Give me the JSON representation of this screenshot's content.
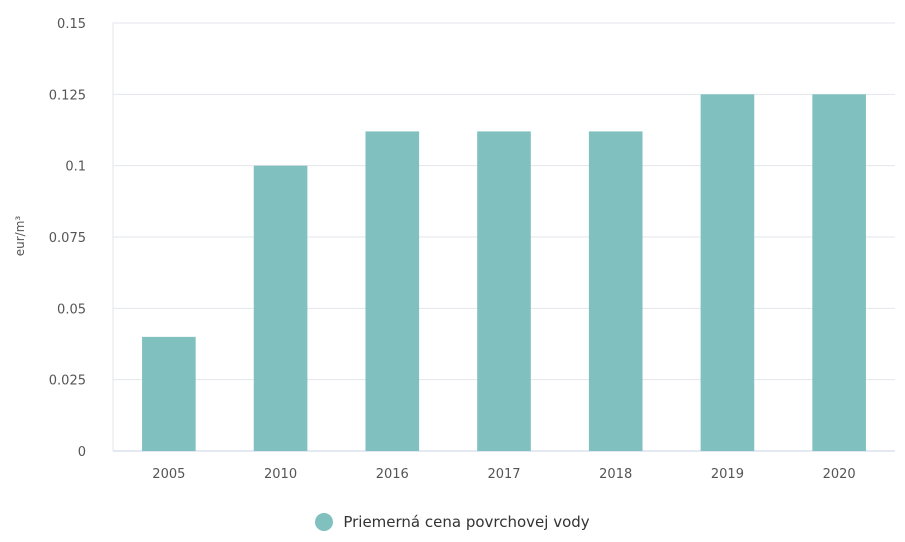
{
  "chart_data": {
    "type": "bar",
    "title": "",
    "xlabel": "",
    "ylabel": "eur/m³",
    "categories": [
      "2005",
      "2010",
      "2016",
      "2017",
      "2018",
      "2019",
      "2020"
    ],
    "series": [
      {
        "name": "Priemerná cena povrchovej vody",
        "values": [
          0.04,
          0.1,
          0.112,
          0.112,
          0.112,
          0.125,
          0.125
        ],
        "color": "#80c1bf"
      }
    ],
    "ylim": [
      0,
      0.15
    ],
    "yticks": [
      "0",
      "0.025",
      "0.05",
      "0.075",
      "0.1",
      "0.125",
      "0.15"
    ],
    "grid": true,
    "legend_position": "bottom-center"
  }
}
